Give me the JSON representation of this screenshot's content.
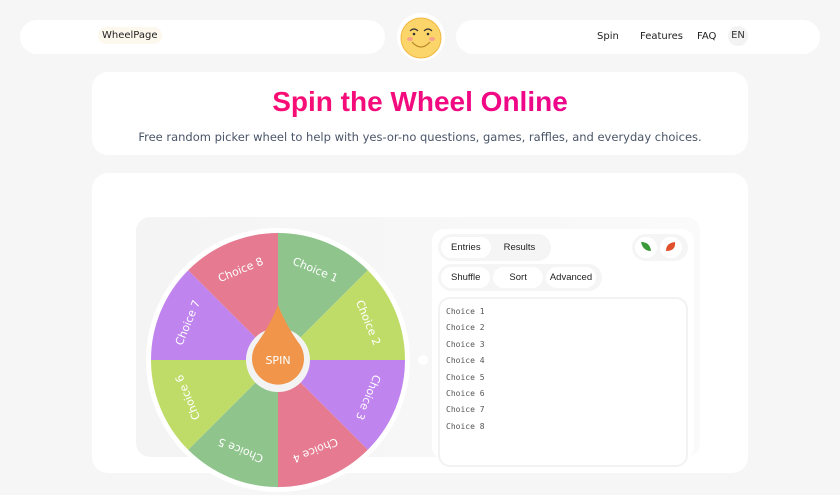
{
  "header": {
    "brand": "WheelPage",
    "nav": [
      "Spin",
      "Features",
      "FAQ"
    ],
    "lang": "EN",
    "logo_icon": "smiley-face-icon"
  },
  "hero": {
    "title": "Spin the Wheel Online",
    "subtitle": "Free random picker wheel to help with yes-or-no questions, games, raffles, and everyday choices."
  },
  "wheel": {
    "spin_label": "SPIN",
    "segments": [
      "Choice 1",
      "Choice 2",
      "Choice 3",
      "Choice 4",
      "Choice 5",
      "Choice 6",
      "Choice 7",
      "Choice 8"
    ],
    "colors": [
      "#8fc58c",
      "#c0dc68",
      "#c084ee",
      "#e57a90"
    ],
    "button_color": "#f0954a"
  },
  "panel": {
    "tabs": [
      "Entries",
      "Results"
    ],
    "actions": [
      "Shuffle",
      "Sort",
      "Advanced"
    ],
    "icons": [
      "green-leaf-icon",
      "autumn-leaf-icon"
    ],
    "entries": [
      "Choice 1",
      "Choice 2",
      "Choice 3",
      "Choice 4",
      "Choice 5",
      "Choice 6",
      "Choice 7",
      "Choice 8"
    ]
  }
}
